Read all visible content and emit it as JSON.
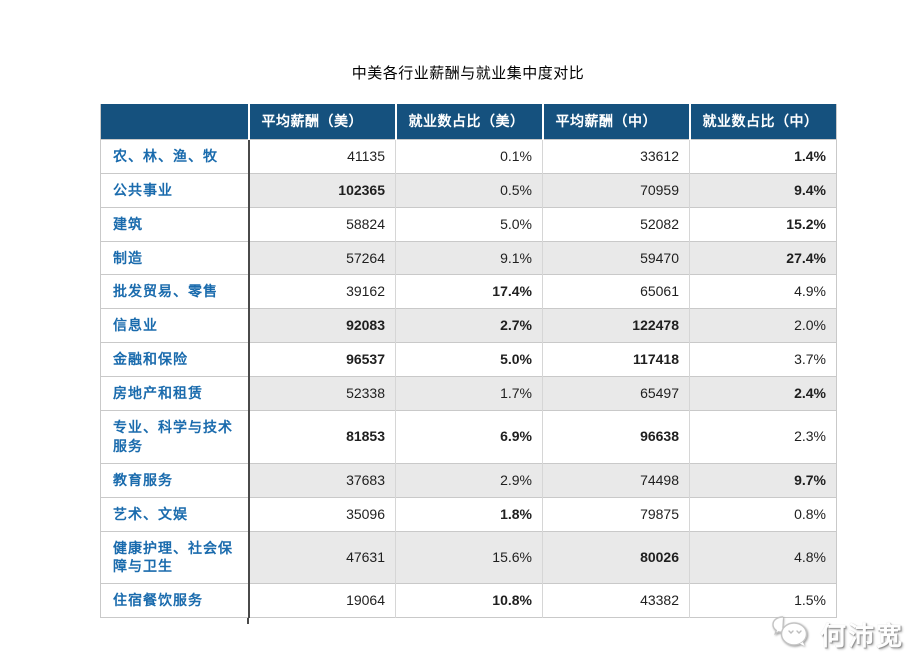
{
  "title": "中美各行业薪酬与就业集中度对比",
  "colors": {
    "header_bg": "#15517E",
    "header_fg": "#FFFFFF",
    "label_color": "#1A6BAD",
    "stripe": "#E9E9E9"
  },
  "watermark": {
    "icon": "wechat-bubbles-icon",
    "text": "何沛宽"
  },
  "chart_data": {
    "type": "table",
    "title": "中美各行业薪酬与就业集中度对比",
    "columns": [
      "平均薪酬（美）",
      "就业数占比（美）",
      "平均薪酬（中）",
      "就业数占比（中）"
    ],
    "rows": [
      {
        "label": "农、林、渔、牧",
        "cells": [
          {
            "v": "41135",
            "b": false
          },
          {
            "v": "0.1%",
            "b": false
          },
          {
            "v": "33612",
            "b": false
          },
          {
            "v": "1.4%",
            "b": true
          }
        ]
      },
      {
        "label": "公共事业",
        "cells": [
          {
            "v": "102365",
            "b": true
          },
          {
            "v": "0.5%",
            "b": false
          },
          {
            "v": "70959",
            "b": false
          },
          {
            "v": "9.4%",
            "b": true
          }
        ]
      },
      {
        "label": "建筑",
        "cells": [
          {
            "v": "58824",
            "b": false
          },
          {
            "v": "5.0%",
            "b": false
          },
          {
            "v": "52082",
            "b": false
          },
          {
            "v": "15.2%",
            "b": true
          }
        ]
      },
      {
        "label": "制造",
        "cells": [
          {
            "v": "57264",
            "b": false
          },
          {
            "v": "9.1%",
            "b": false
          },
          {
            "v": "59470",
            "b": false
          },
          {
            "v": "27.4%",
            "b": true
          }
        ]
      },
      {
        "label": "批发贸易、零售",
        "cells": [
          {
            "v": "39162",
            "b": false
          },
          {
            "v": "17.4%",
            "b": true
          },
          {
            "v": "65061",
            "b": false
          },
          {
            "v": "4.9%",
            "b": false
          }
        ]
      },
      {
        "label": "信息业",
        "cells": [
          {
            "v": "92083",
            "b": true
          },
          {
            "v": "2.7%",
            "b": true
          },
          {
            "v": "122478",
            "b": true
          },
          {
            "v": "2.0%",
            "b": false
          }
        ]
      },
      {
        "label": "金融和保险",
        "cells": [
          {
            "v": "96537",
            "b": true
          },
          {
            "v": "5.0%",
            "b": true
          },
          {
            "v": "117418",
            "b": true
          },
          {
            "v": "3.7%",
            "b": false
          }
        ]
      },
      {
        "label": "房地产和租赁",
        "cells": [
          {
            "v": "52338",
            "b": false
          },
          {
            "v": "1.7%",
            "b": false
          },
          {
            "v": "65497",
            "b": false
          },
          {
            "v": "2.4%",
            "b": true
          }
        ]
      },
      {
        "label": "专业、科学与技术服务",
        "cells": [
          {
            "v": "81853",
            "b": true
          },
          {
            "v": "6.9%",
            "b": true
          },
          {
            "v": "96638",
            "b": true
          },
          {
            "v": "2.3%",
            "b": false
          }
        ]
      },
      {
        "label": "教育服务",
        "cells": [
          {
            "v": "37683",
            "b": false
          },
          {
            "v": "2.9%",
            "b": false
          },
          {
            "v": "74498",
            "b": false
          },
          {
            "v": "9.7%",
            "b": true
          }
        ]
      },
      {
        "label": "艺术、文娱",
        "cells": [
          {
            "v": "35096",
            "b": false
          },
          {
            "v": "1.8%",
            "b": true
          },
          {
            "v": "79875",
            "b": false
          },
          {
            "v": "0.8%",
            "b": false
          }
        ]
      },
      {
        "label": "健康护理、社会保障与卫生",
        "cells": [
          {
            "v": "47631",
            "b": false
          },
          {
            "v": "15.6%",
            "b": false
          },
          {
            "v": "80026",
            "b": true
          },
          {
            "v": "4.8%",
            "b": false
          }
        ]
      },
      {
        "label": "住宿餐饮服务",
        "cells": [
          {
            "v": "19064",
            "b": false
          },
          {
            "v": "10.8%",
            "b": true
          },
          {
            "v": "43382",
            "b": false
          },
          {
            "v": "1.5%",
            "b": false
          }
        ]
      }
    ]
  }
}
